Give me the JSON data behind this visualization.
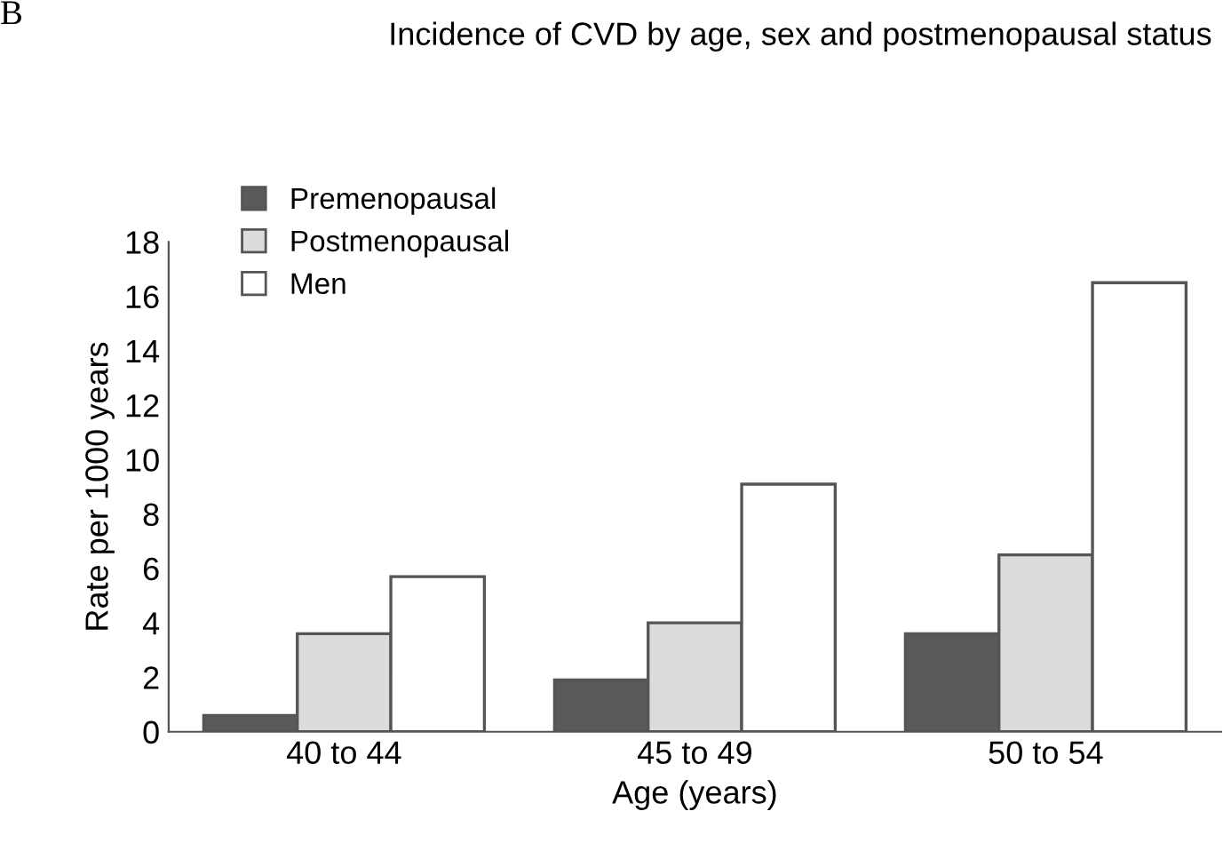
{
  "chart_data": {
    "type": "bar",
    "title": "Incidence of CVD by age, sex and postmenopausal status",
    "annotations": [
      "B"
    ],
    "xlabel": "Age (years)",
    "ylabel": "Rate per 1000 years",
    "categories": [
      "40 to 44",
      "45 to 49",
      "50 to 54"
    ],
    "series": [
      {
        "name": "Premenopausal",
        "color": "#5a5a5a",
        "values": [
          0.6,
          1.9,
          3.6
        ]
      },
      {
        "name": "Postmenopausal",
        "color": "#dcdcdc",
        "values": [
          3.6,
          4.0,
          6.5
        ]
      },
      {
        "name": "Men",
        "color": "#ffffff",
        "values": [
          5.7,
          9.1,
          16.5
        ]
      }
    ],
    "ylim": [
      0,
      18
    ],
    "yticks": [
      0,
      2,
      4,
      6,
      8,
      10,
      12,
      14,
      16,
      18
    ],
    "grid": false,
    "legend": "top left"
  }
}
